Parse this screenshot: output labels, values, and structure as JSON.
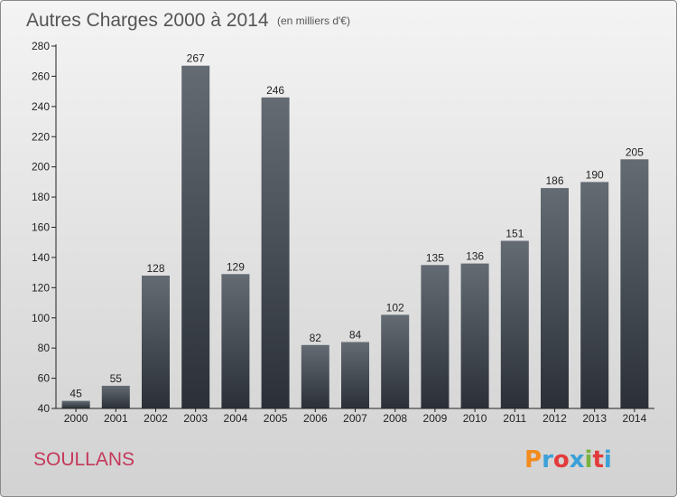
{
  "chart_data": {
    "type": "bar",
    "title": "Autres Charges 2000 à 2014",
    "subtitle": "(en milliers d'€)",
    "categories": [
      "2000",
      "2001",
      "2002",
      "2003",
      "2004",
      "2005",
      "2006",
      "2007",
      "2008",
      "2009",
      "2010",
      "2011",
      "2012",
      "2013",
      "2014"
    ],
    "values": [
      45,
      55,
      128,
      267,
      129,
      246,
      82,
      84,
      102,
      135,
      136,
      151,
      186,
      190,
      205
    ],
    "ylim": [
      40,
      280
    ],
    "yticks": [
      40,
      60,
      80,
      100,
      120,
      140,
      160,
      180,
      200,
      220,
      240,
      260,
      280
    ],
    "xlabel": "",
    "ylabel": "",
    "grid": false,
    "bar_color_top": "#646b73",
    "bar_color_bottom": "#2b3038"
  },
  "footer": {
    "commune": "SOULLANS",
    "brand": "Proxiti",
    "brand_colors": [
      "#f28c1e",
      "#3aa0d8",
      "#e23b3b",
      "#3aa0d8",
      "#7ab33e",
      "#e23b3b",
      "#3aa0d8"
    ]
  }
}
